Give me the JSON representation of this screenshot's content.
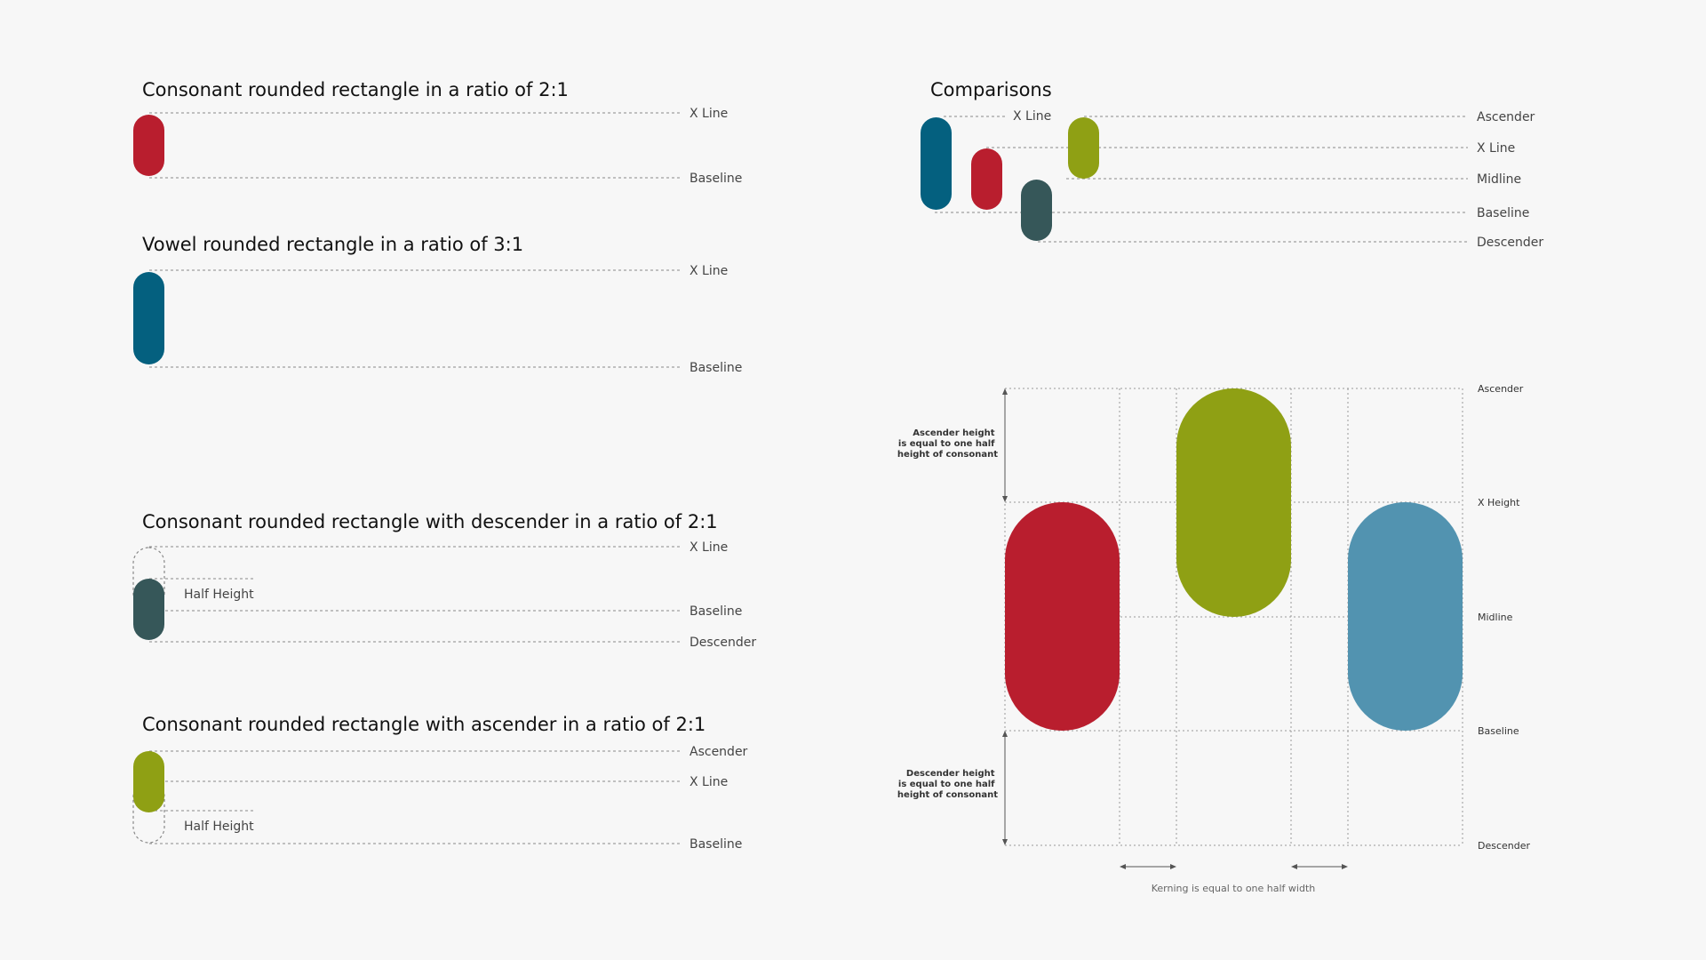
{
  "colors": {
    "consonant": "#b91e2e",
    "vowel": "#04607f",
    "descender": "#365759",
    "ascender": "#8fa014",
    "vowel_light": "#5293b0"
  },
  "panel_consonant": {
    "title": "Consonant rounded rectangle in a ratio of 2:1",
    "x_line": "X Line",
    "baseline": "Baseline"
  },
  "panel_vowel": {
    "title": "Vowel rounded rectangle in a ratio of 3:1",
    "x_line": "X Line",
    "baseline": "Baseline"
  },
  "panel_descender": {
    "title": "Consonant rounded rectangle with descender in a ratio of 2:1",
    "x_line": "X Line",
    "half_height": "Half Height",
    "baseline": "Baseline",
    "descender": "Descender"
  },
  "panel_ascender": {
    "title": "Consonant rounded rectangle with ascender in a ratio of 2:1",
    "ascender": "Ascender",
    "x_line": "X Line",
    "half_height": "Half Height",
    "baseline": "Baseline"
  },
  "comparisons": {
    "title": "Comparisons",
    "x_line_left": "X Line",
    "ascender": "Ascender",
    "x_line": "X Line",
    "midline": "Midline",
    "baseline": "Baseline",
    "descender": "Descender"
  },
  "grid": {
    "ascender": "Ascender",
    "x_height": "X Height",
    "midline": "Midline",
    "baseline": "Baseline",
    "descender": "Descender",
    "ascender_note": [
      "Ascender height",
      "is equal to one half",
      "height of consonant"
    ],
    "descender_note": [
      "Descender height",
      "is equal to one half",
      "height of consonant"
    ],
    "kerning_note": "Kerning is equal to one half width"
  }
}
